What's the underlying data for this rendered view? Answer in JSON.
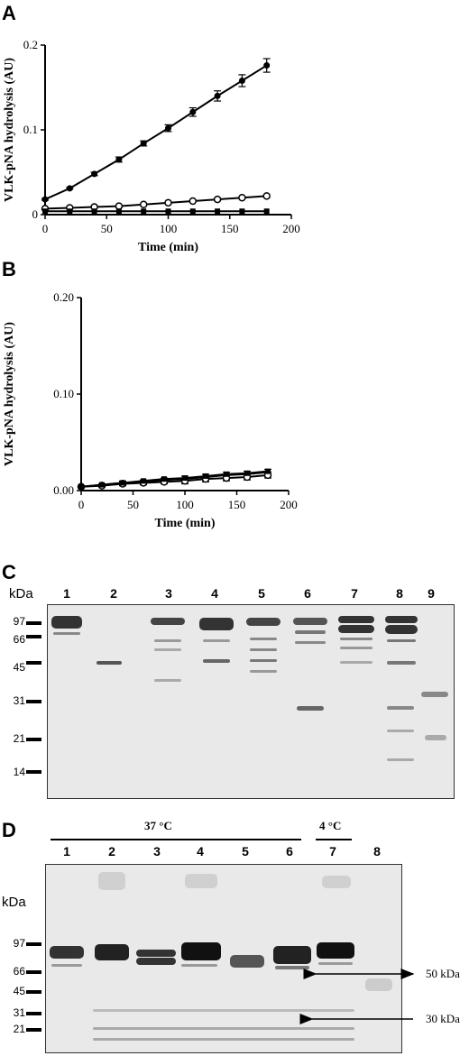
{
  "panels": {
    "a": {
      "label": "A"
    },
    "b": {
      "label": "B"
    },
    "c": {
      "label": "C"
    },
    "d": {
      "label": "D"
    }
  },
  "chart_data": [
    {
      "type": "line",
      "panel": "A",
      "xlabel": "Time (min)",
      "ylabel": "VLK-pNA hydrolysis (AU)",
      "xlim": [
        0,
        200
      ],
      "ylim": [
        0,
        0.2
      ],
      "xticks": [
        "0",
        "50",
        "100",
        "150",
        "200"
      ],
      "yticks": [
        "0",
        "0.1",
        "0.2"
      ],
      "x": [
        0,
        20,
        40,
        60,
        80,
        100,
        120,
        140,
        160,
        180
      ],
      "series": [
        {
          "marker": "filled-circle",
          "values": [
            0.018,
            0.031,
            0.048,
            0.065,
            0.084,
            0.102,
            0.121,
            0.14,
            0.158,
            0.176
          ],
          "errors": [
            0.001,
            0.001,
            0.002,
            0.003,
            0.003,
            0.004,
            0.005,
            0.006,
            0.007,
            0.008
          ]
        },
        {
          "marker": "open-circle",
          "values": [
            0.007,
            0.008,
            0.009,
            0.01,
            0.012,
            0.014,
            0.016,
            0.018,
            0.02,
            0.022
          ],
          "errors": [
            0,
            0,
            0,
            0,
            0,
            0,
            0,
            0,
            0,
            0
          ]
        },
        {
          "marker": "filled-square",
          "values": [
            0.004,
            0.004,
            0.004,
            0.004,
            0.004,
            0.004,
            0.004,
            0.004,
            0.004,
            0.004
          ],
          "errors": [
            0,
            0,
            0,
            0,
            0,
            0,
            0,
            0,
            0,
            0
          ]
        }
      ]
    },
    {
      "type": "line",
      "panel": "B",
      "xlabel": "Time (min)",
      "ylabel": "VLK-pNA hydrolysis (AU)",
      "xlim": [
        0,
        200
      ],
      "ylim": [
        0,
        0.2
      ],
      "xticks": [
        "0",
        "50",
        "100",
        "150",
        "200"
      ],
      "yticks": [
        "0.00",
        "0.10",
        "0.20"
      ],
      "x": [
        0,
        20,
        40,
        60,
        80,
        100,
        120,
        140,
        160,
        180
      ],
      "series": [
        {
          "marker": "filled-circle",
          "values": [
            0.004,
            0.006,
            0.008,
            0.009,
            0.011,
            0.012,
            0.014,
            0.016,
            0.017,
            0.019
          ],
          "errors": [
            0.001,
            0.001,
            0.002,
            0.002,
            0.002,
            0.003,
            0.003,
            0.003,
            0.003,
            0.003
          ]
        },
        {
          "marker": "open-circle",
          "values": [
            0.004,
            0.005,
            0.007,
            0.008,
            0.009,
            0.01,
            0.012,
            0.013,
            0.014,
            0.016
          ],
          "errors": [
            0.001,
            0.001,
            0.002,
            0.002,
            0.002,
            0.003,
            0.003,
            0.003,
            0.003,
            0.003
          ]
        },
        {
          "marker": "filled-square",
          "values": [
            0.004,
            0.006,
            0.008,
            0.01,
            0.012,
            0.013,
            0.015,
            0.017,
            0.018,
            0.02
          ],
          "errors": [
            0,
            0,
            0,
            0,
            0,
            0,
            0,
            0,
            0,
            0
          ]
        }
      ]
    }
  ],
  "gel_c": {
    "unit": "kDa",
    "lanes": [
      "1",
      "2",
      "3",
      "4",
      "5",
      "6",
      "7",
      "8",
      "9"
    ],
    "markers": [
      "97",
      "66",
      "45",
      "31",
      "21",
      "14"
    ]
  },
  "gel_d": {
    "unit": "kDa",
    "temp_37": "37 °C",
    "temp_4": "4 °C",
    "lanes": [
      "1",
      "2",
      "3",
      "4",
      "5",
      "6",
      "7",
      "8"
    ],
    "markers": [
      "97",
      "66",
      "45",
      "31",
      "21"
    ],
    "arrow_50": "50 kDa",
    "arrow_30": "30 kDa"
  }
}
